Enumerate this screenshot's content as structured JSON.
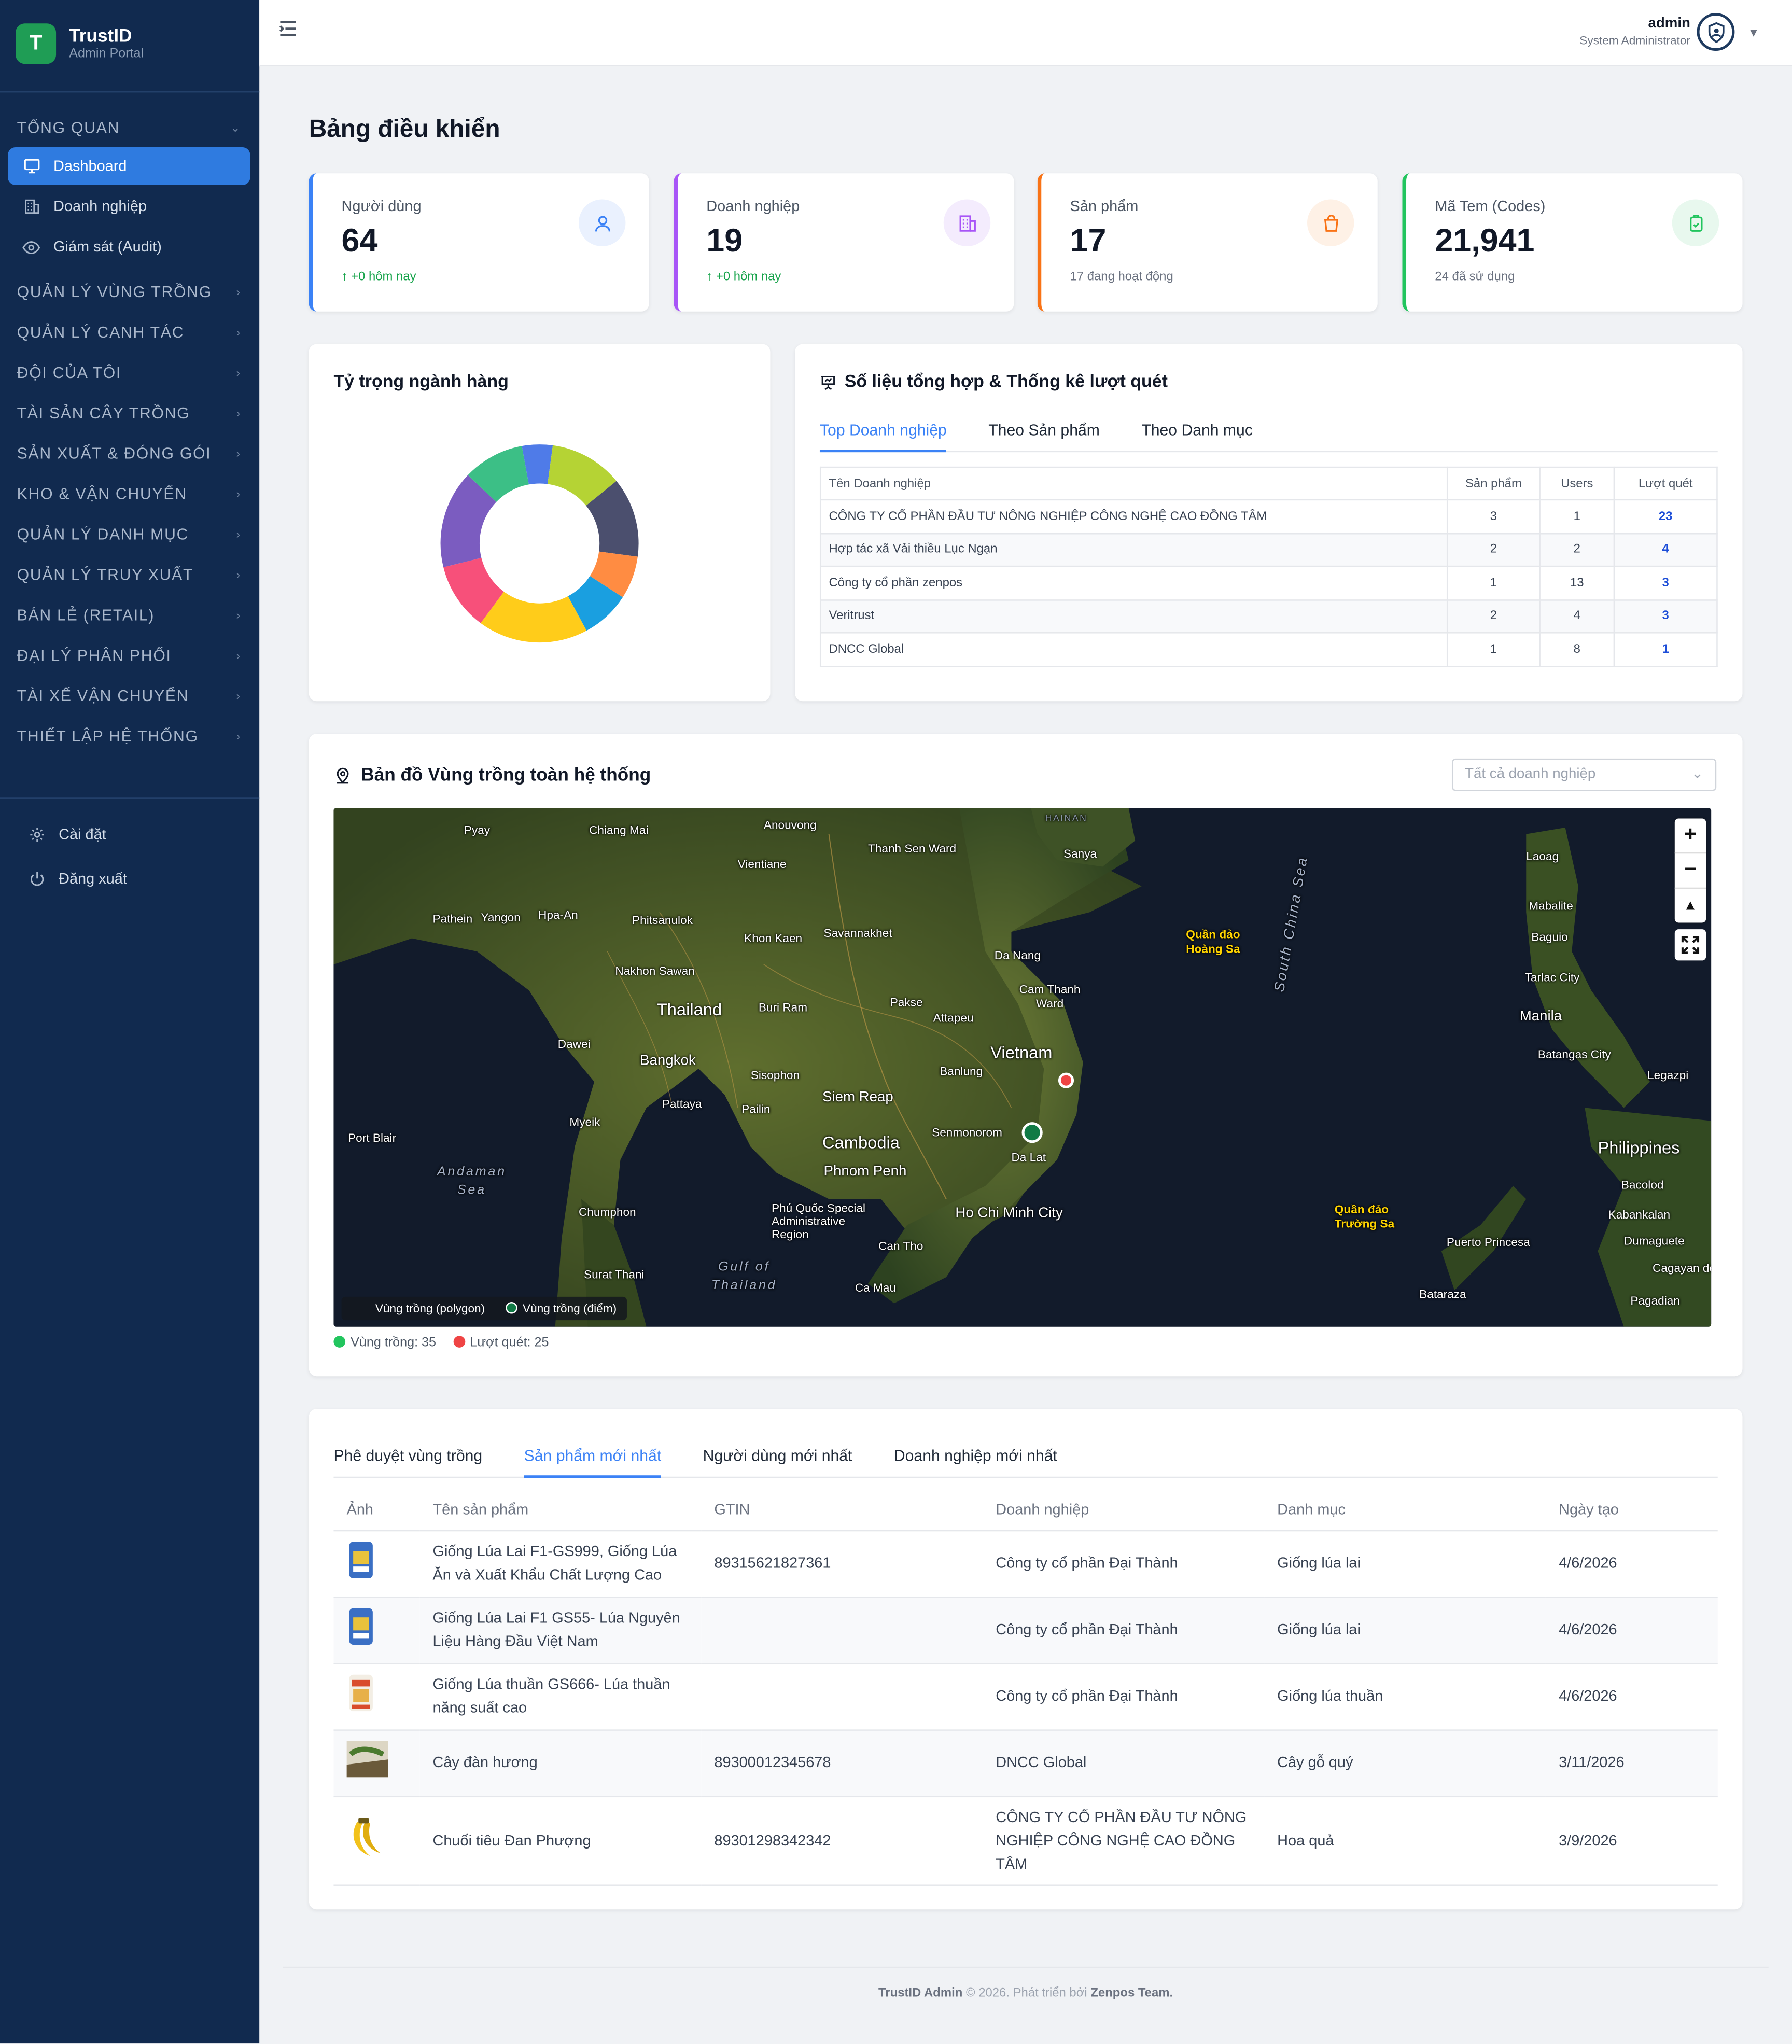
{
  "brand": {
    "name": "TrustID",
    "subtitle": "Admin Portal",
    "logo_letter": "T"
  },
  "sidebar": {
    "section_overview": "TỔNG QUAN",
    "items": [
      {
        "label": "Dashboard",
        "icon": "monitor-icon",
        "active": true
      },
      {
        "label": "Doanh nghiệp",
        "icon": "building-icon"
      },
      {
        "label": "Giám sát (Audit)",
        "icon": "eye-icon"
      }
    ],
    "sections": [
      "QUẢN LÝ VÙNG TRỒNG",
      "QUẢN LÝ CANH TÁC",
      "ĐỘI CỦA TÔI",
      "TÀI SẢN CÂY TRỒNG",
      "SẢN XUẤT & ĐÓNG GÓI",
      "KHO & VẬN CHUYỂN",
      "QUẢN LÝ DANH MỤC",
      "QUẢN LÝ TRUY XUẤT",
      "BÁN LẺ (RETAIL)",
      "ĐẠI LÝ PHÂN PHỐI",
      "TÀI XẾ VẬN CHUYỂN",
      "THIẾT LẬP HỆ THỐNG"
    ],
    "settings": "Cài đặt",
    "logout": "Đăng xuất"
  },
  "header": {
    "user_name": "admin",
    "user_role": "System Administrator"
  },
  "page_title": "Bảng điều khiển",
  "stats": [
    {
      "label": "Người dùng",
      "value": "64",
      "sub": "+0 hôm nay",
      "color": "#3b82f6",
      "icon": "user-icon"
    },
    {
      "label": "Doanh nghiệp",
      "value": "19",
      "sub": "+0 hôm nay",
      "color": "#a855f7",
      "icon": "building-icon"
    },
    {
      "label": "Sản phẩm",
      "value": "17",
      "sub": "17 đang hoạt động",
      "color": "#f97316",
      "icon": "bag-icon"
    },
    {
      "label": "Mã Tem (Codes)",
      "value": "21,941",
      "sub": "24 đã sử dụng",
      "color": "#22c55e",
      "icon": "tag-icon"
    }
  ],
  "industry_card": {
    "title": "Tỷ trọng ngành hàng",
    "chart_data": {
      "type": "pie",
      "donut": true,
      "slices": [
        {
          "value": 5,
          "color": "#4f7be8"
        },
        {
          "value": 12,
          "color": "#b5d334"
        },
        {
          "value": 13,
          "color": "#4b4f6e"
        },
        {
          "value": 7,
          "color": "#ff8c42"
        },
        {
          "value": 8,
          "color": "#1a9fe0"
        },
        {
          "value": 18,
          "color": "#ffcc1a"
        },
        {
          "value": 11,
          "color": "#f7507a"
        },
        {
          "value": 16,
          "color": "#7b5cc0"
        },
        {
          "value": 10,
          "color": "#3cbf86"
        }
      ]
    }
  },
  "scan_card": {
    "title": "Số liệu tổng hợp & Thống kê lượt quét",
    "tabs": [
      "Top Doanh nghiệp",
      "Theo Sản phẩm",
      "Theo Danh mục"
    ],
    "columns": [
      "Tên Doanh nghiệp",
      "Sản phẩm",
      "Users",
      "Lượt quét"
    ],
    "rows": [
      [
        "CÔNG TY CỔ PHẦN ĐẦU TƯ NÔNG NGHIỆP CÔNG NGHỆ CAO ĐỒNG TÂM",
        "3",
        "1",
        "23"
      ],
      [
        "Hợp tác xã Vải thiều Lục Ngạn",
        "2",
        "2",
        "4"
      ],
      [
        "Công ty cổ phần zenpos",
        "1",
        "13",
        "3"
      ],
      [
        "Veritrust",
        "2",
        "4",
        "3"
      ],
      [
        "DNCC Global",
        "1",
        "8",
        "1"
      ]
    ]
  },
  "map_card": {
    "title": "Bản đồ Vùng trồng toàn hệ thống",
    "filter_placeholder": "Tất cả doanh nghiệp",
    "legend_polygon": "Vùng trồng (polygon)",
    "legend_point": "Vùng trồng (điểm)",
    "count_regions": "Vùng trồng: 35",
    "count_scans": "Lượt quét: 25",
    "labels": {
      "thailand": "Thailand",
      "cambodia": "Cambodia",
      "vietnam": "Vietnam",
      "philippines": "Philippines",
      "bangkok": "Bangkok",
      "phnom_penh": "Phnom Penh",
      "hcmc": "Ho Chi Minh City",
      "danang": "Da Nang",
      "hoangsa": "Quần đảo Hoàng Sa",
      "truongsa": "Quần đảo Trường Sa",
      "scs": "South China Sea",
      "andaman": "Andaman Sea",
      "gulf": "Gulf of Thailand",
      "manila": "Manila",
      "siemreap": "Siem Reap",
      "vientiane": "Vientiane",
      "yangon": "Yangon",
      "sanya": "Sanya",
      "hainan": "HAINAN",
      "cantho": "Can Tho",
      "dalat": "Da Lat",
      "chiangmai": "Chiang Mai",
      "pyay": "Pyay",
      "pathein": "Pathein",
      "hpaan": "Hpa-An",
      "phitsanulok": "Phitsanulok",
      "khonkaen": "Khon Kaen",
      "savannakhet": "Savannakhet",
      "nakhonsawan": "Nakhon Sawan",
      "burirum": "Buri Ram",
      "pakse": "Pakse",
      "attapeu": "Attapeu",
      "camthanh": "Cam Thanh Ward",
      "dawei": "Dawei",
      "sisophon": "Sisophon",
      "pattaya": "Pattaya",
      "pailin": "Pailin",
      "banlung": "Banlung",
      "senmonorom": "Senmonorom",
      "myeik": "Myeik",
      "portblair": "Port Blair",
      "chumphon": "Chumphon",
      "phuquoc": "Phú Quốc Special Administrative Region",
      "suratthani": "Surat Thani",
      "camau": "Ca Mau",
      "thanhsen": "Thanh Sen Ward",
      "anouvong": "Anouvong",
      "laoag": "Laoag",
      "mabalite": "Mabalite",
      "baguio": "Baguio",
      "tarlac": "Tarlac City",
      "batangas": "Batangas City",
      "legazpi": "Legazpi",
      "bacolod": "Bacolod",
      "kabankalan": "Kabankalan",
      "dumaguete": "Dumaguete",
      "cagayan": "Cagayan de",
      "pagadian": "Pagadian",
      "puerto": "Puerto Princesa",
      "bataraza": "Bataraza"
    }
  },
  "products_card": {
    "tabs": [
      "Phê duyệt vùng trồng",
      "Sản phẩm mới nhất",
      "Người dùng mới nhất",
      "Doanh nghiệp mới nhất"
    ],
    "active_tab": 1,
    "columns": [
      "Ảnh",
      "Tên sản phẩm",
      "GTIN",
      "Doanh nghiệp",
      "Danh mục",
      "Ngày tạo"
    ],
    "rows": [
      {
        "thumb": "rice-bag-blue",
        "name": "Giống Lúa Lai F1-GS999, Giống Lúa Ăn và Xuất Khẩu Chất Lượng Cao",
        "gtin": "89315621827361",
        "company": "Công ty cổ phần Đại Thành",
        "category": "Giống lúa lai",
        "date": "4/6/2026"
      },
      {
        "thumb": "rice-bag-blue",
        "name": "Giống Lúa Lai F1 GS55- Lúa Nguyên Liệu Hàng Đầu Việt Nam",
        "gtin": "",
        "company": "Công ty cổ phần Đại Thành",
        "category": "Giống lúa lai",
        "date": "4/6/2026"
      },
      {
        "thumb": "rice-bag-red",
        "name": "Giống Lúa thuần GS666- Lúa thuần năng suất cao",
        "gtin": "",
        "company": "Công ty cổ phần Đại Thành",
        "category": "Giống lúa thuần",
        "date": "4/6/2026"
      },
      {
        "thumb": "wood-tree",
        "name": "Cây đàn hương",
        "gtin": "89300012345678",
        "company": "DNCC Global",
        "category": "Cây gỗ quý",
        "date": "3/11/2026"
      },
      {
        "thumb": "banana",
        "name": "Chuối tiêu Đan Phượng",
        "gtin": "89301298342342",
        "company": "CÔNG TY CỔ PHẦN ĐẦU TƯ NÔNG NGHIỆP CÔNG NGHỆ CAO ĐỒNG TÂM",
        "category": "Hoa quả",
        "date": "3/9/2026"
      }
    ]
  },
  "footer": {
    "brand": "TrustID Admin",
    "text": "© 2026. Phát triển bởi",
    "team": "Zenpos Team."
  }
}
